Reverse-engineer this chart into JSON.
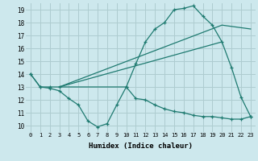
{
  "xlabel": "Humidex (Indice chaleur)",
  "xlim": [
    -0.5,
    23.5
  ],
  "ylim": [
    9.5,
    19.5
  ],
  "xticks": [
    0,
    1,
    2,
    3,
    4,
    5,
    6,
    7,
    8,
    9,
    10,
    11,
    12,
    13,
    14,
    15,
    16,
    17,
    18,
    19,
    20,
    21,
    22,
    23
  ],
  "yticks": [
    10,
    11,
    12,
    13,
    14,
    15,
    16,
    17,
    18,
    19
  ],
  "bg_color": "#cde8ed",
  "grid_color": "#aeccd0",
  "line_color": "#1e7a70",
  "line1_x": [
    0,
    1,
    2,
    3,
    10,
    11,
    12,
    13,
    14,
    15,
    16,
    17,
    18,
    19,
    20,
    21,
    22,
    23
  ],
  "line1_y": [
    14,
    13,
    13,
    13,
    13,
    14.8,
    16.5,
    17.5,
    18.0,
    19.0,
    19.1,
    19.3,
    18.5,
    17.8,
    16.5,
    14.5,
    12.2,
    10.7
  ],
  "line2_x": [
    0,
    1,
    2,
    3,
    4,
    5,
    6,
    7,
    8,
    9,
    10,
    11,
    12,
    13,
    14,
    15,
    16,
    17,
    18,
    19,
    20,
    21,
    22,
    23
  ],
  "line2_y": [
    14,
    13,
    12.9,
    12.7,
    12.1,
    11.6,
    10.35,
    9.9,
    10.15,
    11.6,
    13.0,
    12.1,
    12.0,
    11.6,
    11.3,
    11.1,
    11.0,
    10.8,
    10.7,
    10.7,
    10.6,
    10.5,
    10.5,
    10.7
  ],
  "line3_x": [
    3,
    20,
    23
  ],
  "line3_y": [
    13,
    17.8,
    17.5
  ],
  "line4_x": [
    3,
    20
  ],
  "line4_y": [
    13,
    16.5
  ]
}
